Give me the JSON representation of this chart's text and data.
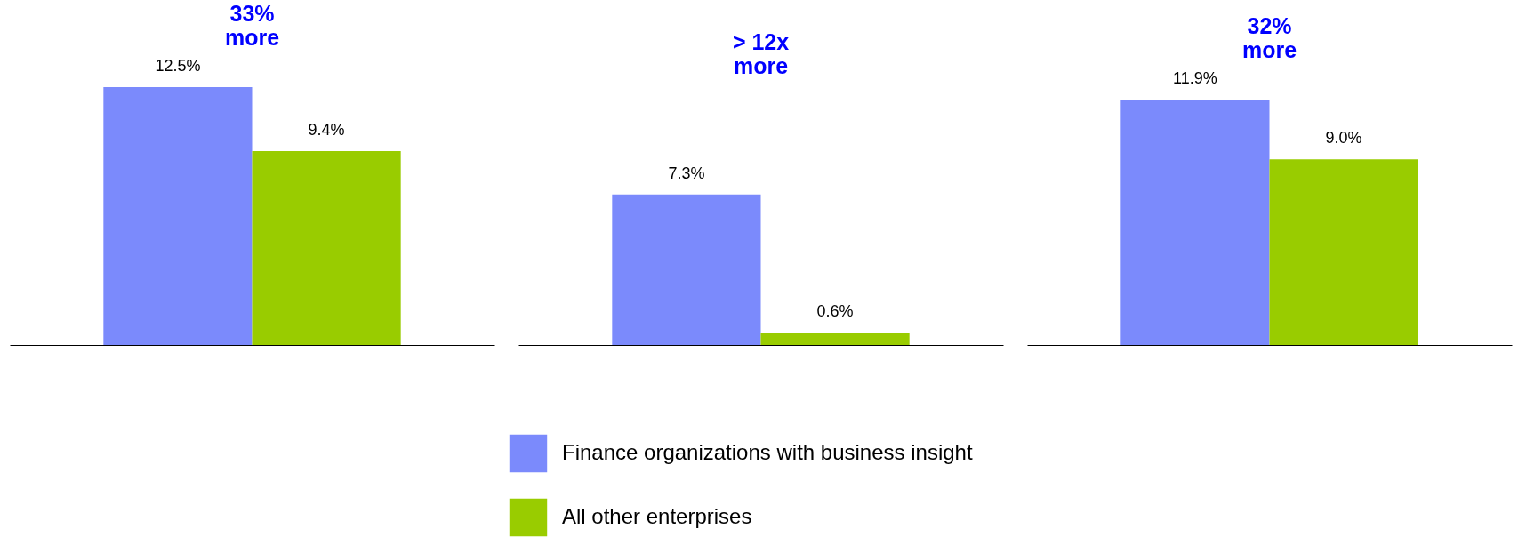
{
  "chart_data": [
    {
      "type": "bar",
      "title": "33%\nmore",
      "categories": [
        null
      ],
      "tick_labels": false,
      "legend": "bottom",
      "series": [
        {
          "name": "Finance organizations with business insight",
          "color": "#7b8afc",
          "values": [
            12.5
          ],
          "value_labels": [
            "12.5%"
          ]
        },
        {
          "name": "All other enterprises",
          "color": "#99cc00",
          "values": [
            9.4
          ],
          "value_labels": [
            "9.4%"
          ]
        }
      ]
    },
    {
      "type": "bar",
      "title": "> 12x\nmore",
      "categories": [
        null
      ],
      "tick_labels": false,
      "series": [
        {
          "color": "#7b8afc",
          "values": [
            7.3
          ],
          "value_labels": [
            "7.3%"
          ]
        },
        {
          "color": "#99cc00",
          "values": [
            0.6
          ],
          "value_labels": [
            "0.6%"
          ]
        }
      ]
    },
    {
      "type": "bar",
      "title": "32%\nmore",
      "categories": [
        null
      ],
      "tick_labels": false,
      "series": [
        {
          "color": "#7b8afc",
          "values": [
            11.9
          ],
          "value_labels": [
            "11.9%"
          ]
        },
        {
          "color": "#99cc00",
          "values": [
            9.0
          ],
          "value_labels": [
            "9.0%"
          ]
        }
      ]
    }
  ]
}
